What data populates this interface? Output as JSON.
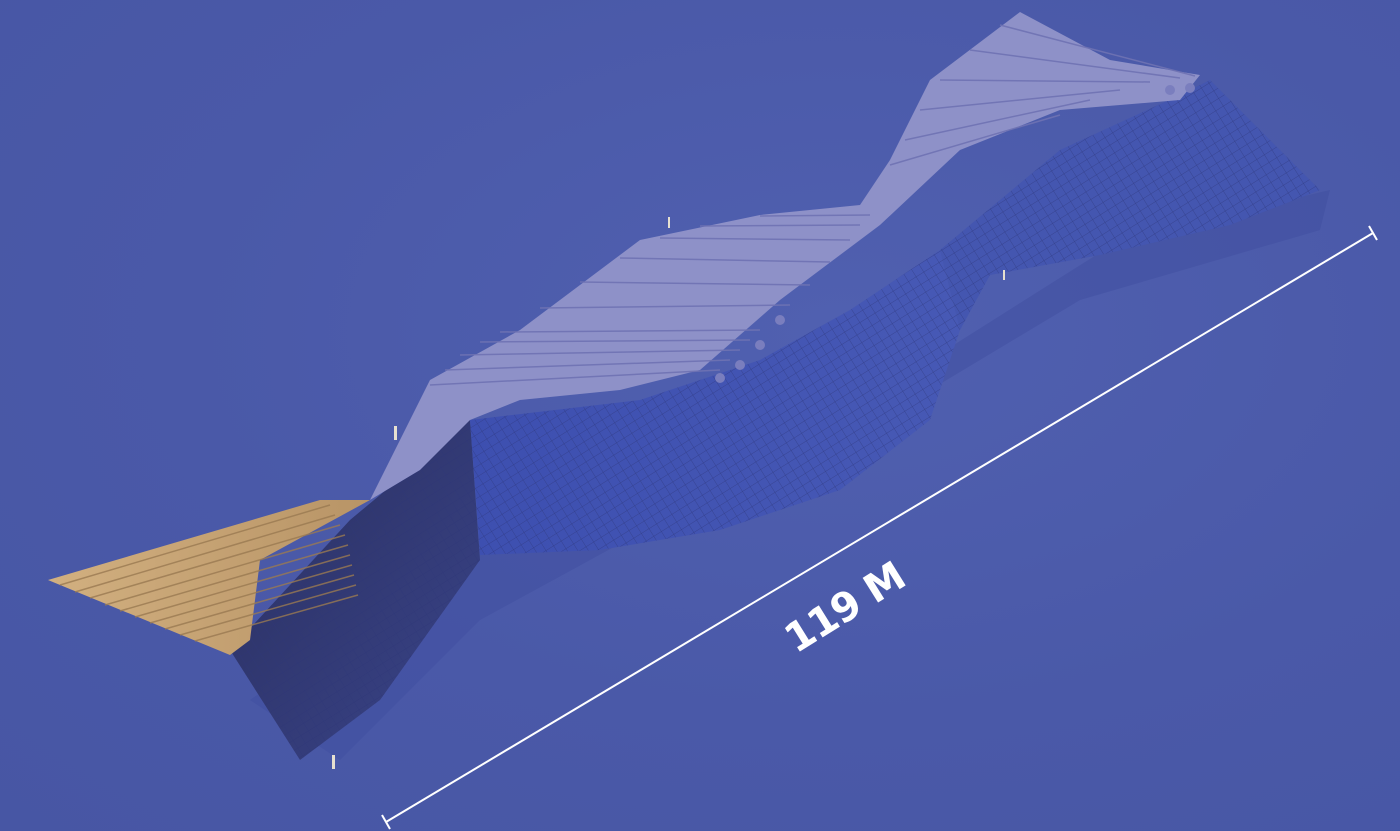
{
  "dimension": {
    "label": "119 M"
  },
  "colors": {
    "background": "#4b5ba9",
    "slat_top": "#8f92c9",
    "slat_wood": "#c9a77a",
    "slat_side": "#3e4a90",
    "lattice": "#2c3470",
    "dimension_line": "#ffffff"
  }
}
